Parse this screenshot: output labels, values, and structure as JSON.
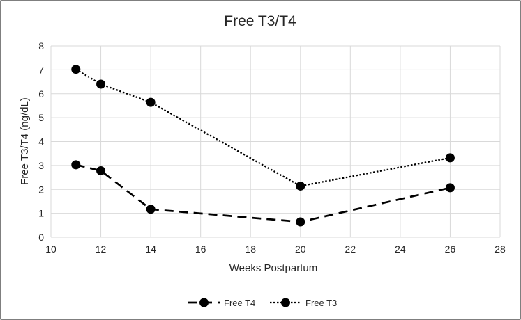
{
  "chart_data": {
    "type": "line",
    "title": "Free T3/T4",
    "xlabel": "Weeks Postpartum",
    "ylabel": "Free T3/T4 (ng/dL)",
    "xlim": [
      10,
      28
    ],
    "ylim": [
      0,
      8
    ],
    "x_ticks": [
      10,
      12,
      14,
      16,
      18,
      20,
      22,
      24,
      26,
      28
    ],
    "y_ticks": [
      0,
      1,
      2,
      3,
      4,
      5,
      6,
      7,
      8
    ],
    "grid": true,
    "legend_position": "bottom",
    "series": [
      {
        "name": "Free T4",
        "line_style": "dashed",
        "color": "#000000",
        "x": [
          11,
          12,
          14,
          20,
          26
        ],
        "y": [
          3.03,
          2.78,
          1.17,
          0.64,
          2.07
        ]
      },
      {
        "name": "Free T3",
        "line_style": "dotted",
        "color": "#000000",
        "x": [
          11,
          12,
          14,
          20,
          26
        ],
        "y": [
          7.02,
          6.4,
          5.64,
          2.14,
          3.32
        ]
      }
    ]
  }
}
